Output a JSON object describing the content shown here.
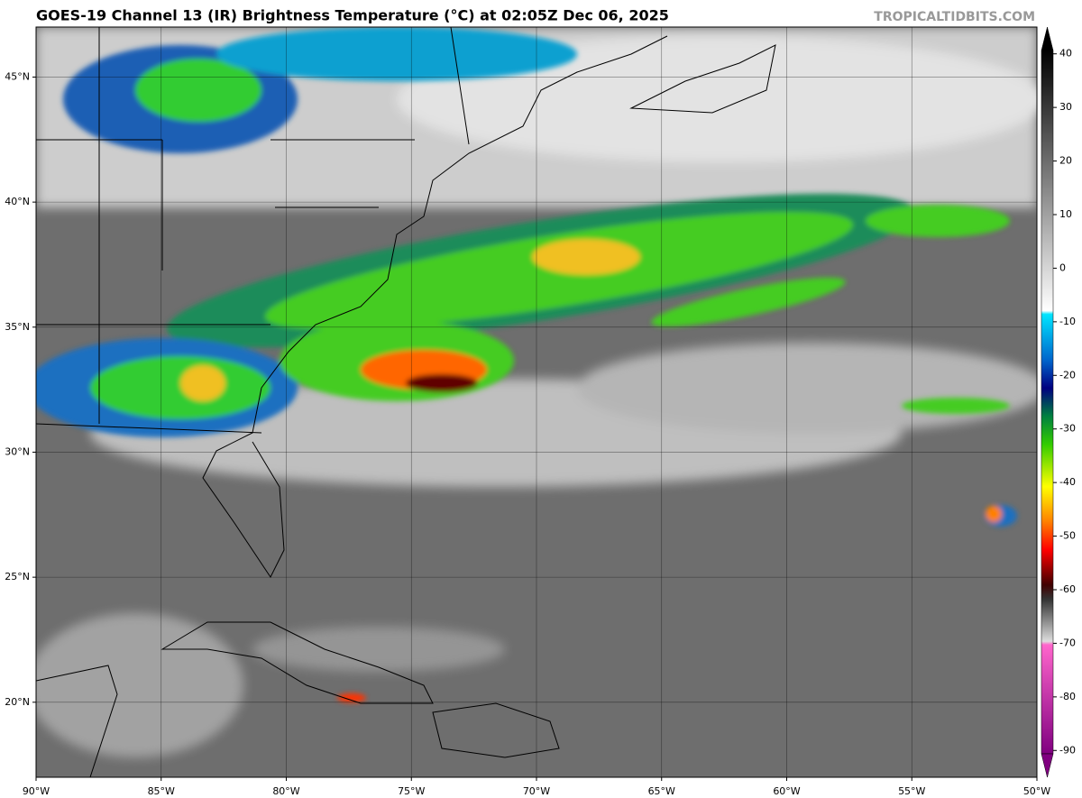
{
  "header": {
    "title": "GOES-19 Channel 13 (IR) Brightness Temperature (°C) at 02:05Z Dec 06, 2025",
    "watermark": "TROPICALTIDBITS.COM"
  },
  "map": {
    "xlim": [
      -90,
      -50
    ],
    "ylim": [
      17,
      47
    ],
    "xticks": [
      {
        "value": -90,
        "label": "90°W"
      },
      {
        "value": -85,
        "label": "85°W"
      },
      {
        "value": -80,
        "label": "80°W"
      },
      {
        "value": -75,
        "label": "75°W"
      },
      {
        "value": -70,
        "label": "70°W"
      },
      {
        "value": -65,
        "label": "65°W"
      },
      {
        "value": -60,
        "label": "60°W"
      },
      {
        "value": -55,
        "label": "55°W"
      },
      {
        "value": -50,
        "label": "50°W"
      }
    ],
    "yticks": [
      {
        "value": 20,
        "label": "20°N"
      },
      {
        "value": 25,
        "label": "25°N"
      },
      {
        "value": 30,
        "label": "30°N"
      },
      {
        "value": 35,
        "label": "35°N"
      },
      {
        "value": 40,
        "label": "40°N"
      },
      {
        "value": 45,
        "label": "45°N"
      }
    ],
    "grid": true
  },
  "colorbar": {
    "clim": [
      -95,
      45
    ],
    "ticks": [
      40,
      30,
      20,
      10,
      0,
      -10,
      -20,
      -30,
      -40,
      -50,
      -60,
      -70,
      -80,
      -90
    ]
  }
}
